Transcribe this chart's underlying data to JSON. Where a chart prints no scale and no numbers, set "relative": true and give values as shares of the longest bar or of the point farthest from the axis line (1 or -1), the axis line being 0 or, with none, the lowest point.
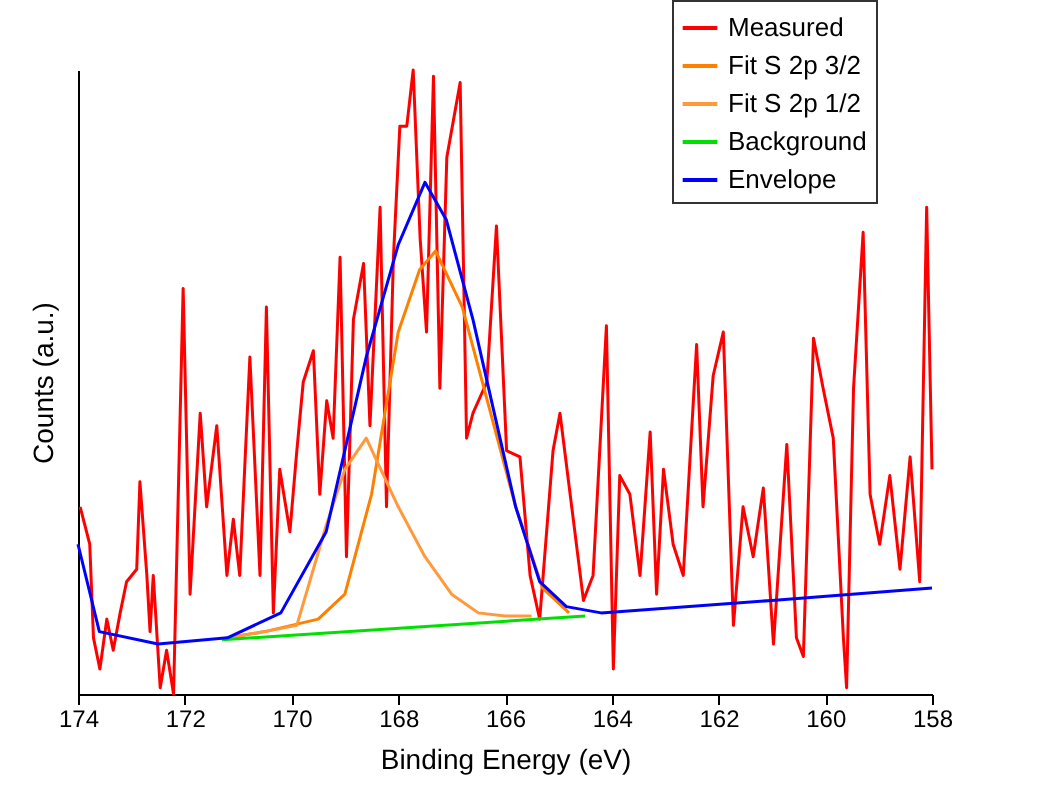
{
  "chart_data": {
    "type": "line",
    "relative": true,
    "xlabel": "Binding Energy (eV)",
    "ylabel": "Counts (a.u.)",
    "xlim": [
      174,
      158
    ],
    "xticks": [
      174,
      172,
      170,
      168,
      166,
      164,
      162,
      160,
      158
    ],
    "legend": "top right",
    "marker": "none",
    "line_style": "solid",
    "series": [
      {
        "name": "Measured",
        "color": "#ff0000",
        "type": "line",
        "x": [
          173.96,
          173.78,
          173.71,
          173.59,
          173.46,
          173.34,
          173.21,
          173.09,
          172.9,
          172.84,
          172.71,
          172.65,
          172.59,
          172.46,
          172.34,
          172.21,
          172.03,
          171.9,
          171.71,
          171.59,
          171.4,
          171.21,
          171.09,
          170.97,
          170.78,
          170.59,
          170.47,
          170.34,
          170.22,
          170.03,
          169.9,
          169.78,
          169.59,
          169.47,
          169.34,
          169.22,
          169.09,
          168.97,
          168.84,
          168.65,
          168.53,
          168.34,
          168.22,
          168.09,
          167.97,
          167.84,
          167.72,
          167.59,
          167.47,
          167.34,
          167.22,
          167.09,
          166.84,
          166.72,
          166.6,
          166.34,
          166.16,
          165.97,
          165.72,
          165.53,
          165.35,
          165.1,
          164.97,
          164.53,
          164.35,
          164.1,
          163.97,
          163.85,
          163.66,
          163.47,
          163.28,
          163.16,
          163.03,
          162.85,
          162.66,
          162.41,
          162.29,
          162.1,
          161.91,
          161.72,
          161.54,
          161.35,
          161.16,
          160.97,
          160.72,
          160.54,
          160.41,
          160.22,
          160.04,
          159.85,
          159.66,
          159.6,
          159.47,
          159.29,
          159.16,
          158.98,
          158.79,
          158.6,
          158.41,
          158.23,
          158.1,
          158.0
        ],
        "values": [
          0.3,
          0.24,
          0.09,
          0.04,
          0.12,
          0.07,
          0.13,
          0.18,
          0.2,
          0.34,
          0.19,
          0.1,
          0.19,
          0.01,
          0.07,
          0.0,
          0.65,
          0.16,
          0.45,
          0.3,
          0.43,
          0.19,
          0.28,
          0.19,
          0.54,
          0.19,
          0.62,
          0.13,
          0.36,
          0.26,
          0.39,
          0.5,
          0.55,
          0.32,
          0.47,
          0.41,
          0.7,
          0.22,
          0.6,
          0.69,
          0.43,
          0.78,
          0.3,
          0.7,
          0.91,
          0.91,
          1.0,
          0.73,
          0.58,
          0.99,
          0.49,
          0.86,
          0.98,
          0.41,
          0.45,
          0.5,
          0.75,
          0.39,
          0.38,
          0.19,
          0.12,
          0.39,
          0.45,
          0.15,
          0.19,
          0.59,
          0.04,
          0.35,
          0.32,
          0.19,
          0.42,
          0.16,
          0.36,
          0.24,
          0.19,
          0.56,
          0.3,
          0.51,
          0.58,
          0.11,
          0.3,
          0.22,
          0.33,
          0.08,
          0.4,
          0.09,
          0.06,
          0.57,
          0.49,
          0.41,
          0.09,
          0.01,
          0.49,
          0.74,
          0.32,
          0.24,
          0.35,
          0.2,
          0.38,
          0.18,
          0.78,
          0.36
        ]
      },
      {
        "name": "Fit S 2p 3/2",
        "color": "#ff7f00",
        "type": "line",
        "x": [
          171.2,
          170.5,
          169.5,
          169.0,
          168.5,
          168.0,
          167.6,
          167.3,
          166.8,
          166.3,
          165.8,
          165.3,
          164.8
        ],
        "values": [
          0.09,
          0.1,
          0.12,
          0.16,
          0.32,
          0.58,
          0.68,
          0.71,
          0.62,
          0.46,
          0.3,
          0.17,
          0.13
        ]
      },
      {
        "name": "Fit S 2p 1/2",
        "color": "#ff9a3c",
        "type": "line",
        "x": [
          171.2,
          170.5,
          169.9,
          169.35,
          169.0,
          168.6,
          168.0,
          167.5,
          167.0,
          166.5,
          166.0,
          165.5
        ],
        "values": [
          0.09,
          0.1,
          0.11,
          0.27,
          0.36,
          0.41,
          0.3,
          0.22,
          0.16,
          0.13,
          0.125,
          0.125
        ]
      },
      {
        "name": "Background",
        "color": "#00e000",
        "type": "line",
        "x": [
          171.3,
          164.5
        ],
        "values": [
          0.087,
          0.125
        ]
      },
      {
        "name": "Envelope",
        "color": "#0000ff",
        "type": "line",
        "x": [
          174.0,
          173.6,
          172.5,
          171.2,
          170.2,
          169.35,
          168.6,
          168.0,
          167.5,
          167.1,
          166.6,
          165.8,
          165.35,
          164.85,
          164.2,
          161.0,
          158.0
        ],
        "values": [
          0.24,
          0.1,
          0.08,
          0.09,
          0.13,
          0.26,
          0.54,
          0.72,
          0.82,
          0.76,
          0.6,
          0.3,
          0.18,
          0.14,
          0.13,
          0.15,
          0.17
        ]
      }
    ]
  }
}
